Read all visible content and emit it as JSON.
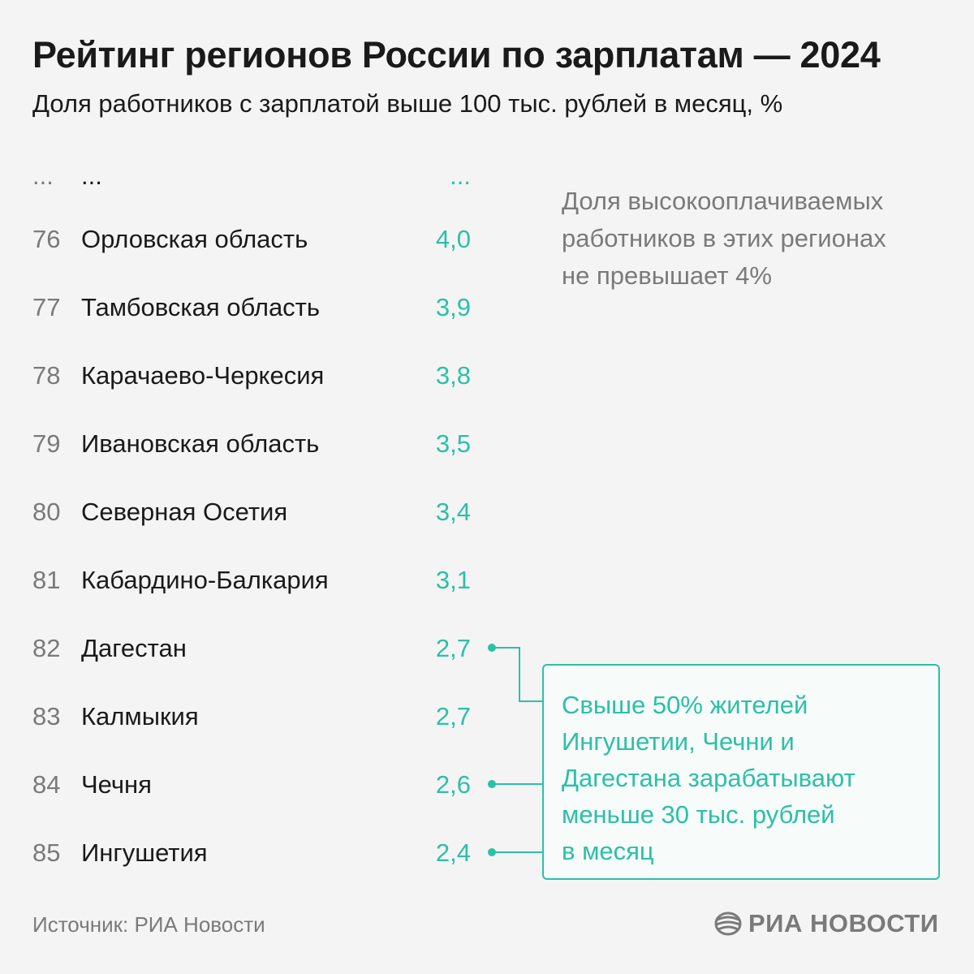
{
  "title": "Рейтинг регионов России по зарплатам — 2024",
  "subtitle": "Доля работников с зарплатой выше 100 тыс. рублей в месяц, %",
  "ellipsis": {
    "rank": "...",
    "name": "...",
    "value": "..."
  },
  "chart_data": {
    "type": "table",
    "title": "Рейтинг регионов России по зарплатам — 2024",
    "subtitle": "Доля работников с зарплатой выше 100 тыс. рублей в месяц, %",
    "columns": [
      "rank",
      "region",
      "value"
    ],
    "rows": [
      {
        "rank": "76",
        "region": "Орловская область",
        "value": "4,0"
      },
      {
        "rank": "77",
        "region": "Тамбовская область",
        "value": "3,9"
      },
      {
        "rank": "78",
        "region": "Карачаево-Черкесия",
        "value": "3,8"
      },
      {
        "rank": "79",
        "region": "Ивановская область",
        "value": "3,5"
      },
      {
        "rank": "80",
        "region": "Северная Осетия",
        "value": "3,4"
      },
      {
        "rank": "81",
        "region": "Кабардино-Балкария",
        "value": "3,1"
      },
      {
        "rank": "82",
        "region": "Дагестан",
        "value": "2,7"
      },
      {
        "rank": "83",
        "region": "Калмыкия",
        "value": "2,7"
      },
      {
        "rank": "84",
        "region": "Чечня",
        "value": "2,6"
      },
      {
        "rank": "85",
        "region": "Ингушетия",
        "value": "2,4"
      }
    ],
    "highlighted_ranks": [
      "82",
      "84",
      "85"
    ]
  },
  "note": "Доля высокооплачиваемых\nработников в этих регионах\nне превышает 4%",
  "callout": "Свыше 50% жителей\nИнгушетии, Чечни и\nДагестана зарабатывают\nменьше 30 тыс. рублей\nв месяц",
  "source": "Источник: РИА Новости",
  "logo": "РИА НОВОСТИ",
  "colors": {
    "accent": "#2cc0a7",
    "text": "#1a1a1a",
    "muted": "#7a7a7a",
    "background": "#f4f4f4"
  }
}
